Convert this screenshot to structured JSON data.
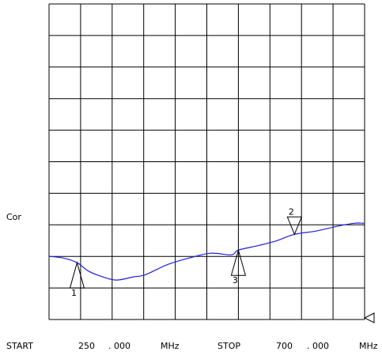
{
  "colors": {
    "background": "#ffffff",
    "grid": "#000000",
    "trace": "#1e1ee6",
    "text": "#000000"
  },
  "channel_label": "Cor",
  "footer": {
    "start_label": "START",
    "start_value": "250",
    "start_decimal": ". 000",
    "start_unit": "MHz",
    "stop_label": "STOP",
    "stop_value": "700",
    "stop_decimal": ". 000",
    "stop_unit": "MHz"
  },
  "markers": [
    {
      "label": "1",
      "orientation": "up",
      "frequency_mhz": 290
    },
    {
      "label": "2",
      "orientation": "down",
      "frequency_mhz": 600
    },
    {
      "label": "3",
      "orientation": "up",
      "frequency_mhz": 520
    }
  ],
  "reference_indicator": "left-triangle",
  "chart_data": {
    "type": "line",
    "title": "",
    "xlabel": "",
    "ylabel": "",
    "xlim": [
      250,
      700
    ],
    "ylim": [
      0,
      10
    ],
    "x_divisions": 10,
    "y_divisions": 10,
    "grid": true,
    "series": [
      {
        "x": [
          250,
          270,
          290,
          305,
          320,
          345,
          370,
          385,
          405,
          420,
          450,
          480,
          510,
          520,
          550,
          575,
          600,
          630,
          660,
          685,
          700
        ],
        "y": [
          2.0,
          1.95,
          1.8,
          1.55,
          1.4,
          1.25,
          1.35,
          1.4,
          1.6,
          1.75,
          1.95,
          2.1,
          2.05,
          2.2,
          2.35,
          2.5,
          2.7,
          2.8,
          2.95,
          3.05,
          3.05
        ]
      }
    ]
  }
}
